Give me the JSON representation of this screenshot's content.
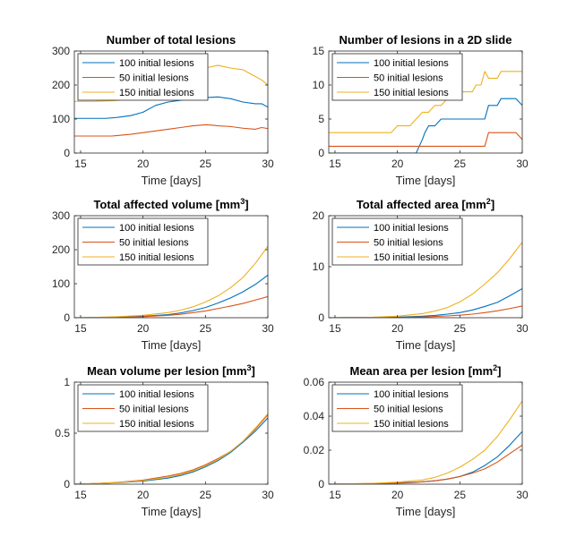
{
  "colors": {
    "s100": "#0072BD",
    "s50": "#D95319",
    "s150": "#EDB120",
    "axis": "#262626",
    "background": "#ffffff"
  },
  "chart_data": [
    {
      "type": "line",
      "title": "Number of total lesions",
      "title_sup": "",
      "title_end": "",
      "xlabel": "Time [days]",
      "ylabel": "",
      "xlim": [
        14.5,
        30
      ],
      "ylim": [
        0,
        300
      ],
      "xticks": [
        15,
        20,
        25,
        30
      ],
      "yticks": [
        0,
        100,
        200,
        300
      ],
      "ytick_labels": [
        "0",
        "100",
        "200",
        "300"
      ],
      "legend_position": "top-left",
      "series": [
        {
          "name": "100 initial lesions",
          "color_key": "s100",
          "x": [
            14.5,
            17,
            18,
            19,
            20,
            21,
            22,
            23,
            24,
            25,
            26,
            27,
            28,
            29,
            29.5,
            30
          ],
          "y": [
            102,
            102,
            105,
            110,
            120,
            140,
            150,
            155,
            160,
            163,
            165,
            160,
            150,
            145,
            145,
            135
          ]
        },
        {
          "name": "50 initial lesions",
          "color_key": "s50",
          "x": [
            14.5,
            17.5,
            19,
            20,
            21,
            22,
            23,
            24,
            25,
            25.5,
            26,
            27,
            28,
            29,
            29.5,
            30
          ],
          "y": [
            50,
            50,
            55,
            60,
            65,
            70,
            75,
            80,
            83,
            82,
            80,
            78,
            73,
            70,
            75,
            72
          ]
        },
        {
          "name": "150 initial lesions",
          "color_key": "s150",
          "x": [
            14.5,
            16,
            17,
            18,
            19,
            20,
            21,
            22,
            23,
            24,
            25,
            26,
            27,
            28,
            29,
            29.5,
            30
          ],
          "y": [
            152,
            152,
            153,
            155,
            160,
            170,
            185,
            200,
            220,
            240,
            250,
            258,
            250,
            245,
            225,
            215,
            200
          ]
        }
      ]
    },
    {
      "type": "line",
      "title": "Number of lesions in a 2D slide",
      "title_sup": "",
      "title_end": "",
      "xlabel": "Time [days]",
      "ylabel": "",
      "xlim": [
        14.5,
        30
      ],
      "ylim": [
        0,
        15
      ],
      "xticks": [
        15,
        20,
        25,
        30
      ],
      "yticks": [
        0,
        5,
        10,
        15
      ],
      "ytick_labels": [
        "0",
        "5",
        "10",
        "15"
      ],
      "legend_position": "top-left",
      "series": [
        {
          "name": "100 initial lesions",
          "color_key": "s100",
          "x": [
            14.5,
            19.5,
            20,
            21.5,
            22,
            22.2,
            22.5,
            23,
            23.5,
            27,
            27.3,
            28,
            28.3,
            29.5,
            30
          ],
          "y": [
            0,
            0,
            0,
            0,
            2,
            3,
            4,
            4,
            5,
            5,
            7,
            7,
            8,
            8,
            7
          ]
        },
        {
          "name": "50 initial lesions",
          "color_key": "s50",
          "x": [
            14.5,
            27,
            27.3,
            29.5,
            30
          ],
          "y": [
            1,
            1,
            3,
            3,
            2
          ]
        },
        {
          "name": "150 initial lesions",
          "color_key": "s150",
          "x": [
            14.5,
            19.5,
            20,
            21,
            21.5,
            22,
            22.5,
            23,
            23.5,
            24,
            24.5,
            25,
            25.5,
            26,
            26.3,
            26.7,
            27,
            27.3,
            27.6,
            28,
            28.3,
            29,
            30
          ],
          "y": [
            3,
            3,
            4,
            4,
            5,
            6,
            6,
            7,
            7,
            8,
            8,
            9,
            9,
            9,
            10,
            10,
            12,
            11,
            11,
            11,
            12,
            12,
            12
          ]
        }
      ]
    },
    {
      "type": "line",
      "title": "Total affected volume [mm",
      "title_sup": "3",
      "title_end": "]",
      "xlabel": "Time [days]",
      "ylabel": "",
      "xlim": [
        14.5,
        30
      ],
      "ylim": [
        0,
        300
      ],
      "xticks": [
        15,
        20,
        25,
        30
      ],
      "yticks": [
        0,
        100,
        200,
        300
      ],
      "ytick_labels": [
        "0",
        "100",
        "200",
        "300"
      ],
      "legend_position": "top-left",
      "series": [
        {
          "name": "100 initial lesions",
          "color_key": "s100",
          "x": [
            14.5,
            16,
            18,
            20,
            22,
            23,
            24,
            25,
            26,
            27,
            28,
            29,
            30
          ],
          "y": [
            0,
            0.5,
            1.5,
            4,
            9,
            14,
            21,
            30,
            43,
            58,
            76,
            98,
            125
          ]
        },
        {
          "name": "50 initial lesions",
          "color_key": "s50",
          "x": [
            14.5,
            16,
            18,
            20,
            22,
            23,
            24,
            25,
            26,
            27,
            28,
            29,
            30
          ],
          "y": [
            0,
            0.3,
            1,
            3,
            7,
            10,
            15,
            20,
            27,
            34,
            42,
            52,
            62
          ]
        },
        {
          "name": "150 initial lesions",
          "color_key": "s150",
          "x": [
            14.5,
            16,
            18,
            20,
            22,
            23,
            24,
            25,
            26,
            27,
            28,
            29,
            30
          ],
          "y": [
            0,
            1,
            3,
            7,
            15,
            22,
            32,
            46,
            64,
            88,
            118,
            160,
            210
          ]
        }
      ]
    },
    {
      "type": "line",
      "title": "Total affected area [mm",
      "title_sup": "2",
      "title_end": "]",
      "xlabel": "Time [days]",
      "ylabel": "",
      "xlim": [
        14.5,
        30
      ],
      "ylim": [
        0,
        20
      ],
      "xticks": [
        15,
        20,
        25,
        30
      ],
      "yticks": [
        0,
        10,
        20
      ],
      "ytick_labels": [
        "0",
        "10",
        "20"
      ],
      "legend_position": "top-left",
      "series": [
        {
          "name": "100 initial lesions",
          "color_key": "s100",
          "x": [
            14.5,
            18,
            20,
            22,
            23,
            24,
            25,
            26,
            27,
            28,
            29,
            30
          ],
          "y": [
            0,
            0.05,
            0.1,
            0.3,
            0.45,
            0.7,
            1.0,
            1.5,
            2.2,
            3.0,
            4.3,
            5.7
          ]
        },
        {
          "name": "50 initial lesions",
          "color_key": "s50",
          "x": [
            14.5,
            18,
            20,
            22,
            23,
            24,
            25,
            26,
            27,
            28,
            29,
            30
          ],
          "y": [
            0,
            0.02,
            0.05,
            0.15,
            0.25,
            0.35,
            0.5,
            0.7,
            1.0,
            1.35,
            1.8,
            2.3
          ]
        },
        {
          "name": "150 initial lesions",
          "color_key": "s150",
          "x": [
            14.5,
            18,
            20,
            22,
            23,
            24,
            25,
            26,
            27,
            28,
            29,
            30
          ],
          "y": [
            0,
            0.1,
            0.3,
            0.8,
            1.3,
            2.0,
            3.1,
            4.6,
            6.6,
            8.8,
            11.6,
            14.8
          ]
        }
      ]
    },
    {
      "type": "line",
      "title": "Mean volume per lesion [mm",
      "title_sup": "3",
      "title_end": "]",
      "xlabel": "Time [days]",
      "ylabel": "",
      "xlim": [
        14.5,
        30
      ],
      "ylim": [
        0,
        1
      ],
      "xticks": [
        15,
        20,
        25,
        30
      ],
      "yticks": [
        0,
        0.5,
        1
      ],
      "ytick_labels": [
        "0",
        "0.5",
        "1"
      ],
      "legend_position": "top-left",
      "series": [
        {
          "name": "100 initial lesions",
          "color_key": "s100",
          "x": [
            14.5,
            16,
            18,
            20,
            22,
            23,
            24,
            25,
            26,
            27,
            28,
            29,
            30
          ],
          "y": [
            0,
            0.005,
            0.015,
            0.03,
            0.06,
            0.085,
            0.12,
            0.17,
            0.23,
            0.31,
            0.41,
            0.52,
            0.65
          ]
        },
        {
          "name": "50 initial lesions",
          "color_key": "s50",
          "x": [
            14.5,
            16,
            18,
            20,
            22,
            23,
            24,
            25,
            26,
            27,
            28,
            29,
            30
          ],
          "y": [
            0,
            0.006,
            0.018,
            0.04,
            0.08,
            0.105,
            0.14,
            0.19,
            0.25,
            0.32,
            0.42,
            0.54,
            0.68
          ]
        },
        {
          "name": "150 initial lesions",
          "color_key": "s150",
          "x": [
            14.5,
            16,
            18,
            20,
            22,
            23,
            24,
            25,
            26,
            27,
            28,
            29,
            30
          ],
          "y": [
            0,
            0.006,
            0.016,
            0.035,
            0.07,
            0.095,
            0.13,
            0.18,
            0.24,
            0.32,
            0.42,
            0.55,
            0.69
          ]
        }
      ]
    },
    {
      "type": "line",
      "title": "Mean area per lesion [mm",
      "title_sup": "2",
      "title_end": "]",
      "xlabel": "Time [days]",
      "ylabel": "",
      "xlim": [
        14.5,
        30
      ],
      "ylim": [
        0,
        0.06
      ],
      "xticks": [
        15,
        20,
        25,
        30
      ],
      "yticks": [
        0,
        0.02,
        0.04,
        0.06
      ],
      "ytick_labels": [
        "0",
        "0.02",
        "0.04",
        "0.06"
      ],
      "legend_position": "top-left",
      "series": [
        {
          "name": "100 initial lesions",
          "color_key": "s100",
          "x": [
            14.5,
            18,
            20,
            21,
            22,
            23,
            24,
            25,
            26,
            27,
            28,
            29,
            30
          ],
          "y": [
            0,
            0.0003,
            0.0006,
            0.0009,
            0.0014,
            0.002,
            0.003,
            0.0045,
            0.007,
            0.011,
            0.016,
            0.023,
            0.031
          ]
        },
        {
          "name": "50 initial lesions",
          "color_key": "s50",
          "x": [
            14.5,
            18,
            20,
            22,
            23,
            24,
            25,
            26,
            27,
            28,
            29,
            30
          ],
          "y": [
            0,
            0.0004,
            0.0008,
            0.0014,
            0.002,
            0.003,
            0.0045,
            0.0065,
            0.009,
            0.013,
            0.018,
            0.023
          ]
        },
        {
          "name": "150 initial lesions",
          "color_key": "s150",
          "x": [
            14.5,
            18,
            20,
            22,
            23,
            24,
            25,
            26,
            27,
            28,
            29,
            30
          ],
          "y": [
            0,
            0.0005,
            0.0012,
            0.0025,
            0.004,
            0.0065,
            0.01,
            0.0145,
            0.02,
            0.028,
            0.038,
            0.049
          ]
        }
      ]
    }
  ]
}
